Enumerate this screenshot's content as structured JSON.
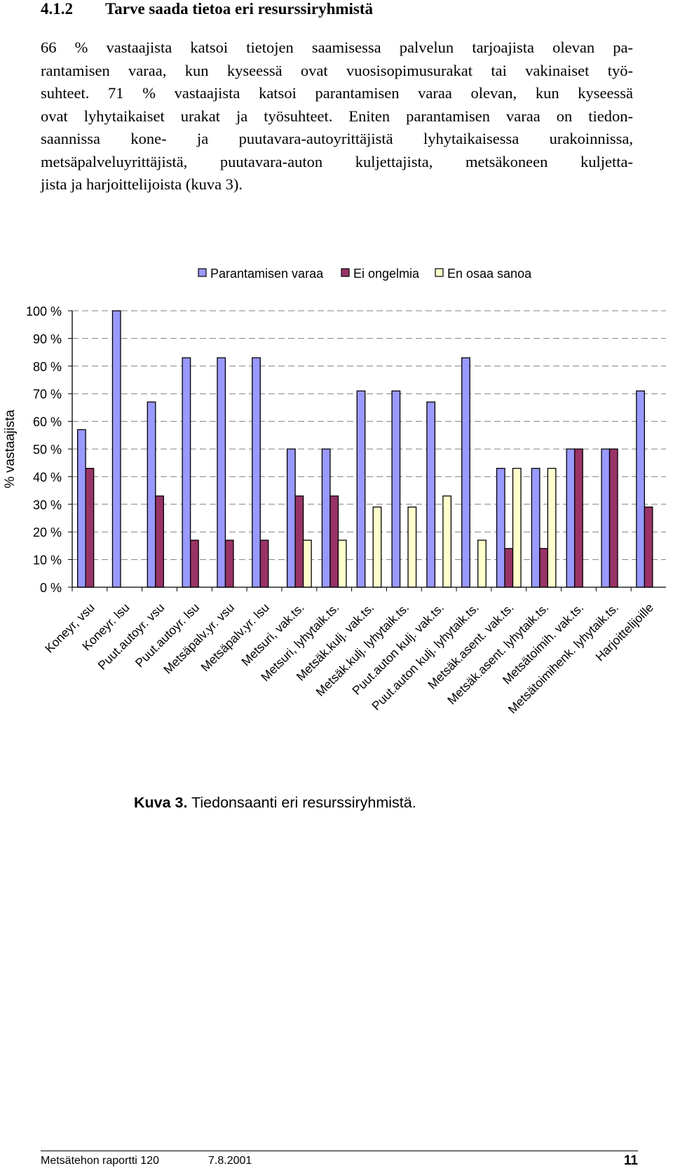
{
  "heading": {
    "number": "4.1.2",
    "title": "Tarve saada tietoa eri resurssiryhmistä"
  },
  "paragraph": {
    "lines": [
      "66 % vastaajista katsoi tietojen saamisessa palvelun tarjoajista olevan pa-",
      "rantamisen varaa, kun kyseessä ovat vuosisopimusurakat tai vakinaiset työ-",
      "suhteet. 71 % vastaajista katsoi parantamisen varaa olevan, kun kyseessä",
      "ovat lyhytaikaiset urakat ja työsuhteet. Eniten parantamisen varaa on tiedon-",
      "saannissa kone- ja puutavara-autoyrittäjistä lyhytaikaisessa urakoinnissa,",
      "metsäpalveluyrittäjistä, puutavara-auton kuljettajista, metsäkoneen kuljetta-",
      "jista ja harjoittelijoista (kuva 3)."
    ]
  },
  "chart_data": {
    "type": "bar",
    "title": "",
    "xlabel": "",
    "ylabel": "% vastaajista",
    "ylim": [
      0,
      100
    ],
    "yticks": [
      "0 %",
      "10 %",
      "20 %",
      "30 %",
      "40 %",
      "50 %",
      "60 %",
      "70 %",
      "80 %",
      "90 %",
      "100 %"
    ],
    "grid": "dashed horizontal",
    "legend_position": "top",
    "categories": [
      "Koneyr, vsu",
      "Koneyr. lsu",
      "Puut.autoyr. vsu",
      "Puut.autoyr. lsu",
      "Metsäpalv.yr. vsu",
      "Metsäpalv.yr. lsu",
      "Metsuri, vak.ts.",
      "Metsuri, lyhytaik.ts.",
      "Metsäk.kulj. vak.ts.",
      "Metsäk.kulj. lyhytaik.ts.",
      "Puut.auton kulj. vak.ts.",
      "Puut.auton kulj. lyhytaik.ts.",
      "Metsäk.asent. vak.ts.",
      "Metsäk.asent. lyhytaik.ts.",
      "Metsätoimih. vak.ts.",
      "Metsätoimihenk. lyhytaik.ts.",
      "Harjoittelijoille"
    ],
    "series": [
      {
        "name": "Parantamisen varaa",
        "color": "#9999ff",
        "values": [
          57,
          100,
          67,
          83,
          83,
          83,
          50,
          50,
          71,
          71,
          67,
          83,
          43,
          43,
          50,
          50,
          71
        ]
      },
      {
        "name": "Ei ongelmia",
        "color": "#993366",
        "values": [
          43,
          0,
          33,
          17,
          17,
          17,
          33,
          33,
          0,
          0,
          0,
          0,
          14,
          14,
          50,
          50,
          29
        ]
      },
      {
        "name": "En osaa sanoa",
        "color": "#ffffcc",
        "values": [
          0,
          0,
          0,
          0,
          0,
          0,
          17,
          17,
          29,
          29,
          33,
          17,
          43,
          43,
          0,
          0,
          0
        ]
      }
    ]
  },
  "caption": {
    "label": "Kuva 3.",
    "text": " Tiedonsaanti eri resurssiryhmistä."
  },
  "footer": {
    "report": "Metsätehon raportti 120",
    "date": "7.8.2001",
    "page": "11"
  }
}
